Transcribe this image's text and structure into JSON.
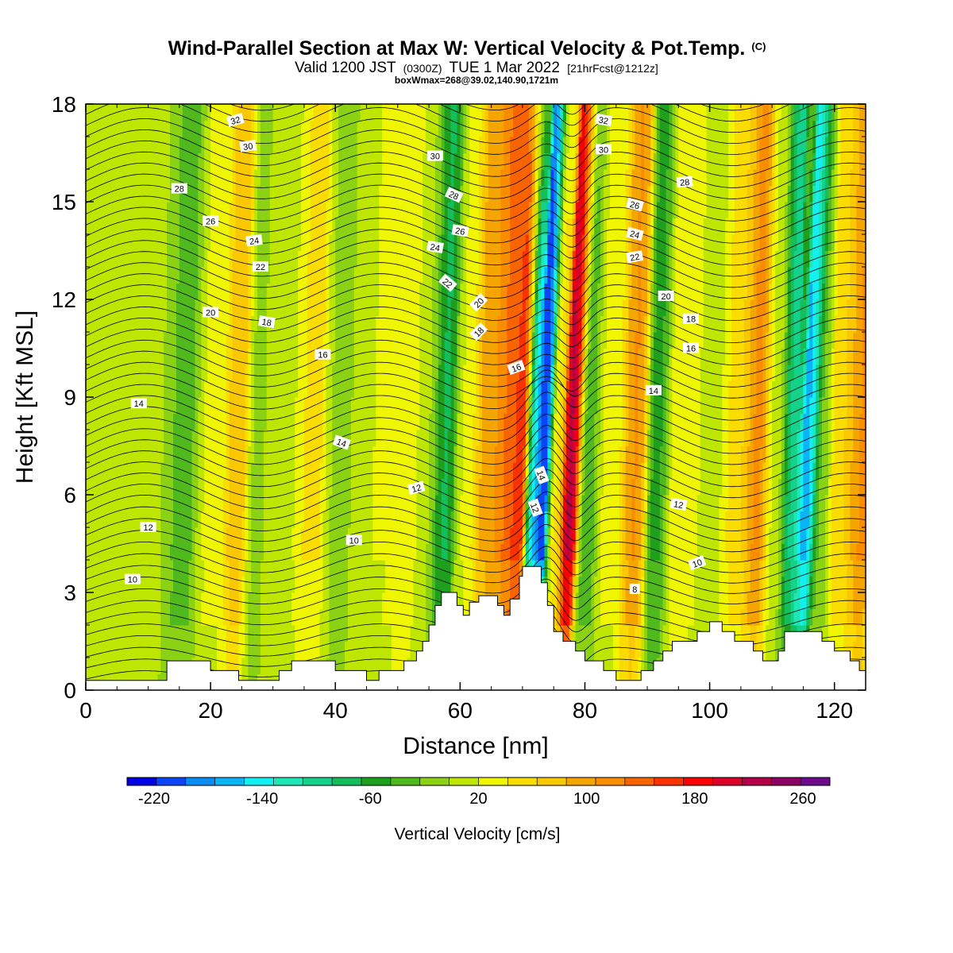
{
  "chart_data": {
    "type": "heatmap",
    "title": "Wind-Parallel Section at Max W: Vertical Velocity & Pot.Temp.",
    "title_mark": "(C)",
    "subtitle_parts": [
      "Valid 1200 JST",
      "(0300Z)",
      "TUE 1 Mar 2022",
      "[21hrFcst@1212z]"
    ],
    "subtitle2": "boxWmax=268@39.02,140.90,1721m",
    "xlabel": "Distance [nm]",
    "ylabel": "Height [Kft MSL]",
    "xlim": [
      0,
      125
    ],
    "ylim": [
      0,
      18
    ],
    "xticks": [
      "0",
      "20",
      "40",
      "60",
      "80",
      "100",
      "120"
    ],
    "yticks": [
      "0",
      "3",
      "6",
      "9",
      "12",
      "15",
      "18"
    ],
    "colorbar": {
      "label": "Vertical Velocity [cm/s]",
      "range": [
        -240,
        280
      ],
      "tick_labels": [
        "-220",
        "-140",
        "-60",
        "20",
        "100",
        "180",
        "260"
      ],
      "colors": [
        "#0000e6",
        "#0a46f5",
        "#0a8cf5",
        "#0ab4f5",
        "#14f0f0",
        "#1ee6b4",
        "#14d28c",
        "#14be5a",
        "#1ea01e",
        "#50b91e",
        "#8cd214",
        "#bee600",
        "#f0f500",
        "#fadc00",
        "#fac800",
        "#f5a500",
        "#fa8c00",
        "#fa6400",
        "#fa3200",
        "#fa0000",
        "#dc0028",
        "#b40046",
        "#8c0064",
        "#6e0a8c"
      ]
    },
    "w_columns": [
      {
        "x": 3,
        "w": 0,
        "width": 4
      },
      {
        "x": 9,
        "w": 0,
        "width": 3
      },
      {
        "x": 16,
        "w": -40,
        "width": 2
      },
      {
        "x": 20,
        "w": 30,
        "width": 2.5
      },
      {
        "x": 24.5,
        "w": 90,
        "width": 1.6
      },
      {
        "x": 27,
        "w": -20,
        "width": 1.4
      },
      {
        "x": 31,
        "w": 10,
        "width": 3
      },
      {
        "x": 36,
        "w": 50,
        "width": 2
      },
      {
        "x": 41,
        "w": -10,
        "width": 2
      },
      {
        "x": 46,
        "w": 20,
        "width": 3
      },
      {
        "x": 51,
        "w": 40,
        "width": 2
      },
      {
        "x": 54.5,
        "w": 0,
        "width": 1.5
      },
      {
        "x": 57.5,
        "w": -70,
        "width": 1.4
      },
      {
        "x": 61,
        "w": 20,
        "width": 1.6
      },
      {
        "x": 64.5,
        "w": 100,
        "width": 2.2
      },
      {
        "x": 68,
        "w": 140,
        "width": 1.8
      },
      {
        "x": 69.6,
        "w": 190,
        "width": 1.0
      },
      {
        "x": 71.5,
        "w": -140,
        "width": 1.0
      },
      {
        "x": 73,
        "w": -210,
        "width": 1.0
      },
      {
        "x": 75.6,
        "w": 40,
        "width": 1.0
      },
      {
        "x": 77.6,
        "w": 230,
        "width": 1.2
      },
      {
        "x": 80.5,
        "w": -40,
        "width": 1.5
      },
      {
        "x": 84,
        "w": 30,
        "width": 2
      },
      {
        "x": 88,
        "w": 110,
        "width": 1.6
      },
      {
        "x": 91.5,
        "w": -60,
        "width": 1.6
      },
      {
        "x": 95.5,
        "w": 40,
        "width": 2.5
      },
      {
        "x": 100,
        "w": 10,
        "width": 2.5
      },
      {
        "x": 104.5,
        "w": 60,
        "width": 2
      },
      {
        "x": 107.5,
        "w": 120,
        "width": 1.5
      },
      {
        "x": 110.5,
        "w": 10,
        "width": 1.6
      },
      {
        "x": 113,
        "w": -100,
        "width": 1.2
      },
      {
        "x": 115.5,
        "w": -160,
        "width": 1.2
      },
      {
        "x": 118,
        "w": -20,
        "width": 1.2
      },
      {
        "x": 121,
        "w": 60,
        "width": 1.8
      },
      {
        "x": 124,
        "w": 110,
        "width": 1.5
      }
    ],
    "terrain": [
      [
        0,
        0.3
      ],
      [
        13,
        0.3
      ],
      [
        13,
        0.9
      ],
      [
        20,
        0.9
      ],
      [
        20,
        0.6
      ],
      [
        24.5,
        0.6
      ],
      [
        24.5,
        0.3
      ],
      [
        31,
        0.3
      ],
      [
        31,
        0.6
      ],
      [
        33,
        0.6
      ],
      [
        33,
        0.9
      ],
      [
        40,
        0.9
      ],
      [
        40,
        0.6
      ],
      [
        45,
        0.6
      ],
      [
        45,
        0.3
      ],
      [
        47,
        0.3
      ],
      [
        47,
        0.6
      ],
      [
        51,
        0.6
      ],
      [
        51,
        0.9
      ],
      [
        53,
        0.9
      ],
      [
        53,
        1.2
      ],
      [
        54,
        1.2
      ],
      [
        54,
        1.5
      ],
      [
        55,
        1.5
      ],
      [
        55,
        2.0
      ],
      [
        56,
        2.0
      ],
      [
        56,
        2.6
      ],
      [
        57,
        2.6
      ],
      [
        57,
        3.0
      ],
      [
        59.5,
        3.0
      ],
      [
        59.5,
        2.6
      ],
      [
        60.5,
        2.6
      ],
      [
        60.5,
        2.3
      ],
      [
        61.5,
        2.3
      ],
      [
        61.5,
        2.7
      ],
      [
        63,
        2.7
      ],
      [
        63,
        2.9
      ],
      [
        66,
        2.9
      ],
      [
        66,
        2.6
      ],
      [
        67,
        2.6
      ],
      [
        67,
        2.3
      ],
      [
        68,
        2.3
      ],
      [
        68,
        2.8
      ],
      [
        69.5,
        2.8
      ],
      [
        69.5,
        3.5
      ],
      [
        70,
        3.5
      ],
      [
        70,
        3.8
      ],
      [
        73,
        3.8
      ],
      [
        73,
        3.3
      ],
      [
        74,
        3.3
      ],
      [
        74,
        2.6
      ],
      [
        75,
        2.6
      ],
      [
        75,
        1.8
      ],
      [
        76.5,
        1.8
      ],
      [
        76.5,
        1.5
      ],
      [
        78.5,
        1.5
      ],
      [
        78.5,
        1.2
      ],
      [
        80,
        1.2
      ],
      [
        80,
        0.9
      ],
      [
        83,
        0.9
      ],
      [
        83,
        0.6
      ],
      [
        85,
        0.6
      ],
      [
        85,
        0.3
      ],
      [
        89,
        0.3
      ],
      [
        89,
        0.6
      ],
      [
        91,
        0.6
      ],
      [
        91,
        0.9
      ],
      [
        92.5,
        0.9
      ],
      [
        92.5,
        1.2
      ],
      [
        94,
        1.2
      ],
      [
        94,
        1.5
      ],
      [
        98,
        1.5
      ],
      [
        98,
        1.8
      ],
      [
        100,
        1.8
      ],
      [
        100,
        2.1
      ],
      [
        102,
        2.1
      ],
      [
        102,
        1.8
      ],
      [
        104,
        1.8
      ],
      [
        104,
        1.5
      ],
      [
        107,
        1.5
      ],
      [
        107,
        1.2
      ],
      [
        108.5,
        1.2
      ],
      [
        108.5,
        0.9
      ],
      [
        111,
        0.9
      ],
      [
        111,
        1.2
      ],
      [
        112,
        1.2
      ],
      [
        112,
        1.8
      ],
      [
        118,
        1.8
      ],
      [
        118,
        1.5
      ],
      [
        120,
        1.5
      ],
      [
        120,
        1.2
      ],
      [
        122.5,
        1.2
      ],
      [
        122.5,
        0.9
      ],
      [
        124,
        0.9
      ],
      [
        124,
        0.6
      ],
      [
        125,
        0.6
      ]
    ],
    "theta_contours": {
      "start": 6,
      "end": 34,
      "step": 0.5
    },
    "contour_labels": [
      {
        "text": "32",
        "x": 24,
        "y": 17.5,
        "angle": -15
      },
      {
        "text": "30",
        "x": 26,
        "y": 16.7,
        "angle": -8
      },
      {
        "text": "28",
        "x": 15,
        "y": 15.4,
        "angle": 0
      },
      {
        "text": "26",
        "x": 20,
        "y": 14.4,
        "angle": 0
      },
      {
        "text": "24",
        "x": 27,
        "y": 13.8,
        "angle": -8
      },
      {
        "text": "22",
        "x": 28,
        "y": 13.0,
        "angle": 0
      },
      {
        "text": "20",
        "x": 20,
        "y": 11.6,
        "angle": 0
      },
      {
        "text": "18",
        "x": 29,
        "y": 11.3,
        "angle": 10
      },
      {
        "text": "16",
        "x": 38,
        "y": 10.3,
        "angle": 0
      },
      {
        "text": "14",
        "x": 8.5,
        "y": 8.8,
        "angle": 0
      },
      {
        "text": "14",
        "x": 41,
        "y": 7.6,
        "angle": 20
      },
      {
        "text": "12",
        "x": 53,
        "y": 6.2,
        "angle": -15
      },
      {
        "text": "12",
        "x": 10,
        "y": 5.0,
        "angle": 0
      },
      {
        "text": "10",
        "x": 43,
        "y": 4.6,
        "angle": 0
      },
      {
        "text": "10",
        "x": 7.5,
        "y": 3.4,
        "angle": 0
      },
      {
        "text": "30",
        "x": 56,
        "y": 16.4,
        "angle": 0
      },
      {
        "text": "28",
        "x": 59,
        "y": 15.2,
        "angle": 25
      },
      {
        "text": "26",
        "x": 60,
        "y": 14.1,
        "angle": 10
      },
      {
        "text": "24",
        "x": 56,
        "y": 13.6,
        "angle": 10
      },
      {
        "text": "22",
        "x": 58,
        "y": 12.5,
        "angle": 40
      },
      {
        "text": "20",
        "x": 63,
        "y": 11.9,
        "angle": -45
      },
      {
        "text": "18",
        "x": 63,
        "y": 11.0,
        "angle": -45
      },
      {
        "text": "16",
        "x": 69,
        "y": 9.9,
        "angle": -20
      },
      {
        "text": "14",
        "x": 73,
        "y": 6.6,
        "angle": 70
      },
      {
        "text": "12",
        "x": 72,
        "y": 5.6,
        "angle": 70
      },
      {
        "text": "32",
        "x": 83,
        "y": 17.5,
        "angle": 10
      },
      {
        "text": "30",
        "x": 83,
        "y": 16.6,
        "angle": 0
      },
      {
        "text": "28",
        "x": 96,
        "y": 15.6,
        "angle": -5
      },
      {
        "text": "26",
        "x": 88,
        "y": 14.9,
        "angle": 15
      },
      {
        "text": "24",
        "x": 88,
        "y": 14.0,
        "angle": 15
      },
      {
        "text": "22",
        "x": 88,
        "y": 13.3,
        "angle": -10
      },
      {
        "text": "20",
        "x": 93,
        "y": 12.1,
        "angle": 0
      },
      {
        "text": "18",
        "x": 97,
        "y": 11.4,
        "angle": 0
      },
      {
        "text": "16",
        "x": 97,
        "y": 10.5,
        "angle": 0
      },
      {
        "text": "14",
        "x": 91,
        "y": 9.2,
        "angle": 0
      },
      {
        "text": "12",
        "x": 95,
        "y": 5.7,
        "angle": 10
      },
      {
        "text": "10",
        "x": 98,
        "y": 3.9,
        "angle": -20
      },
      {
        "text": "8",
        "x": 88,
        "y": 3.1,
        "angle": 0
      }
    ]
  }
}
